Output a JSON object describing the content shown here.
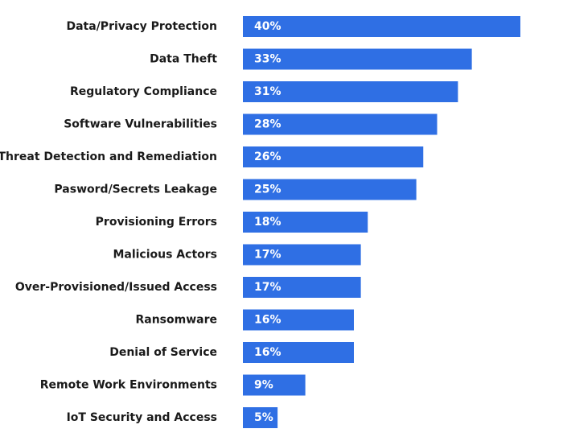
{
  "chart_data": {
    "type": "bar",
    "orientation": "horizontal",
    "categories": [
      "Data/Privacy Protection",
      "Data Theft",
      "Regulatory Compliance",
      "Software Vulnerabilities",
      "Threat Detection and Remediation",
      "Pasword/Secrets Leakage",
      "Provisioning Errors",
      "Malicious Actors",
      "Over-Provisioned/Issued Access",
      "Ransomware",
      "Denial of Service",
      "Remote Work Environments",
      "IoT Security and Access"
    ],
    "values": [
      40,
      33,
      31,
      28,
      26,
      25,
      18,
      17,
      17,
      16,
      16,
      9,
      5
    ],
    "data_labels": [
      "40%",
      "33%",
      "31%",
      "28%",
      "26%",
      "25%",
      "18%",
      "17%",
      "17%",
      "16%",
      "16%",
      "9%",
      "5%"
    ],
    "bar_color": "#2f6fe4",
    "label_color": "#1a1a1a",
    "data_label_color": "#ffffff",
    "xlim": [
      0,
      40
    ],
    "grid": false,
    "legend": "none"
  }
}
